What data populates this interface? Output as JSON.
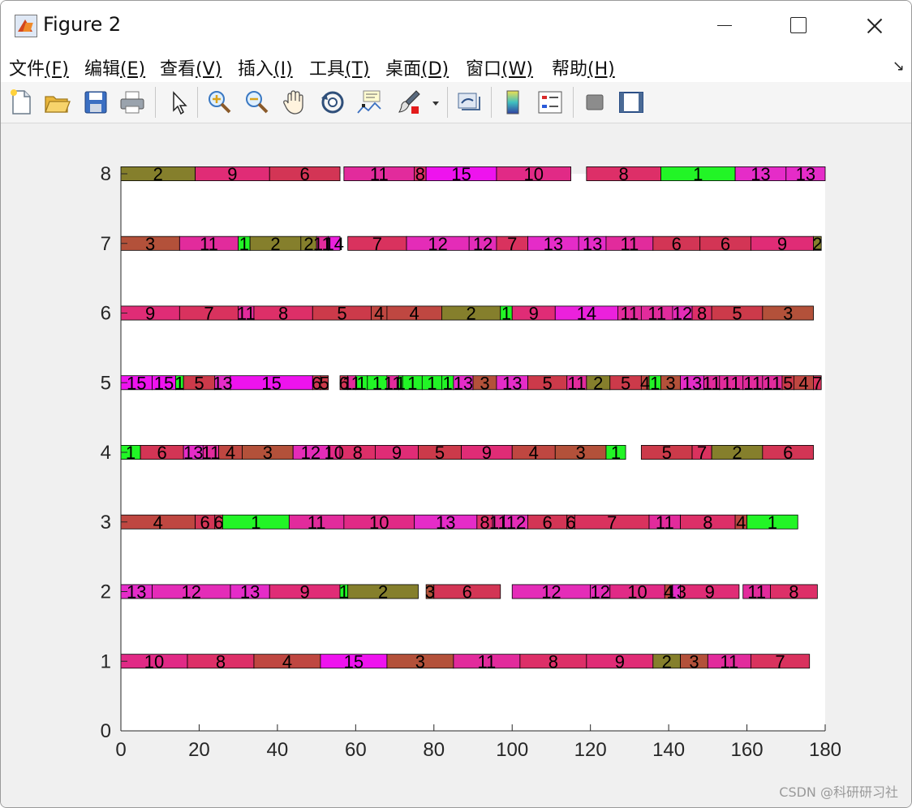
{
  "window": {
    "title": "Figure 2"
  },
  "menu": [
    {
      "label": "文件",
      "accel": "(F)"
    },
    {
      "label": "编辑",
      "accel": "(E)"
    },
    {
      "label": "查看",
      "accel": "(V)"
    },
    {
      "label": "插入",
      "accel": "(I)"
    },
    {
      "label": "工具",
      "accel": "(T)"
    },
    {
      "label": "桌面",
      "accel": "(D)"
    },
    {
      "label": "窗口",
      "accel": "(W)"
    },
    {
      "label": "帮助",
      "accel": "(H)"
    }
  ],
  "menu_corner_icon": "dock-arrow-icon",
  "toolbar_icons": [
    "new-figure-icon",
    "open-folder-icon",
    "save-icon",
    "print-icon",
    "pointer-icon",
    "zoom-in-icon",
    "zoom-out-icon",
    "pan-hand-icon",
    "rotate-3d-icon",
    "data-cursor-icon",
    "brush-icon",
    "brush-dropdown-icon",
    "link-plot-icon",
    "colorbar-icon",
    "legend-icon",
    "hide-plot-tools-icon",
    "show-plot-tools-icon"
  ],
  "watermark": "CSDN @科研研习社",
  "colors": {
    "plot_bg": "#ffffff",
    "figure_bg": "#f0f0f0",
    "bar_edge": "#000000",
    "job_colors": {
      "1": "#22f526",
      "2": "#857f2c",
      "3": "#b3513a",
      "4": "#bf4741",
      "5": "#cc3a4a",
      "6": "#d33555",
      "7": "#d9325e",
      "8": "#dd2f68",
      "9": "#e02c76",
      "10": "#e12a86",
      "11": "#e22b9c",
      "12": "#e42cb8",
      "13": "#e52cc8",
      "14": "#eb21dc",
      "15": "#ee13ee"
    }
  },
  "chart_data": {
    "type": "gantt",
    "xlim": [
      0,
      180
    ],
    "ylim": [
      0,
      8
    ],
    "xticks": [
      0,
      20,
      40,
      60,
      80,
      100,
      120,
      140,
      160,
      180
    ],
    "yticks": [
      0,
      1,
      2,
      3,
      4,
      5,
      6,
      7,
      8
    ],
    "bar_height": 0.2,
    "grid": false,
    "rows": [
      {
        "machine": 1,
        "tasks": [
          [
            0,
            17,
            "10"
          ],
          [
            17,
            34,
            "8"
          ],
          [
            34,
            51,
            "4"
          ],
          [
            51,
            68,
            "15"
          ],
          [
            68,
            85,
            "3"
          ],
          [
            85,
            102,
            "11"
          ],
          [
            102,
            119,
            "8"
          ],
          [
            119,
            136,
            "9"
          ],
          [
            136,
            143,
            "2"
          ],
          [
            143,
            150,
            "3"
          ],
          [
            150,
            161,
            "11"
          ],
          [
            161,
            176,
            "7"
          ]
        ]
      },
      {
        "machine": 2,
        "tasks": [
          [
            0,
            8,
            "13"
          ],
          [
            8,
            28,
            "12"
          ],
          [
            28,
            38,
            "13"
          ],
          [
            38,
            56,
            "9"
          ],
          [
            56,
            58,
            "1"
          ],
          [
            58,
            76,
            "2"
          ],
          [
            78,
            80,
            "3"
          ],
          [
            80,
            97,
            "6"
          ],
          [
            100,
            120,
            "12"
          ],
          [
            120,
            125,
            "12"
          ],
          [
            125,
            139,
            "10"
          ],
          [
            139,
            141,
            "4"
          ],
          [
            141,
            143,
            "13"
          ],
          [
            143,
            158,
            "9"
          ],
          [
            159,
            166,
            "11"
          ],
          [
            166,
            178,
            "8"
          ]
        ]
      },
      {
        "machine": 3,
        "tasks": [
          [
            0,
            19,
            "4"
          ],
          [
            19,
            24,
            "6"
          ],
          [
            24,
            26,
            "6"
          ],
          [
            26,
            43,
            "1"
          ],
          [
            43,
            57,
            "11"
          ],
          [
            57,
            75,
            "10"
          ],
          [
            75,
            91,
            "13"
          ],
          [
            91,
            95,
            "8"
          ],
          [
            95,
            98,
            "11"
          ],
          [
            98,
            104,
            "12"
          ],
          [
            104,
            114,
            "6"
          ],
          [
            114,
            116,
            "6"
          ],
          [
            116,
            135,
            "7"
          ],
          [
            135,
            143,
            "11"
          ],
          [
            143,
            157,
            "8"
          ],
          [
            157,
            160,
            "4"
          ],
          [
            160,
            173,
            "1"
          ]
        ]
      },
      {
        "machine": 4,
        "tasks": [
          [
            0,
            5,
            "1"
          ],
          [
            5,
            16,
            "6"
          ],
          [
            16,
            21,
            "13"
          ],
          [
            21,
            25,
            "11"
          ],
          [
            25,
            31,
            "4"
          ],
          [
            31,
            44,
            "3"
          ],
          [
            44,
            53,
            "12"
          ],
          [
            53,
            56,
            "10"
          ],
          [
            56,
            65,
            "8"
          ],
          [
            65,
            76,
            "9"
          ],
          [
            76,
            87,
            "5"
          ],
          [
            87,
            100,
            "9"
          ],
          [
            100,
            111,
            "4"
          ],
          [
            111,
            124,
            "3"
          ],
          [
            124,
            129,
            "1"
          ],
          [
            133,
            146,
            "5"
          ],
          [
            146,
            151,
            "7"
          ],
          [
            151,
            164,
            "2"
          ],
          [
            164,
            177,
            "6"
          ]
        ]
      },
      {
        "machine": 5,
        "tasks": [
          [
            0,
            8,
            "15"
          ],
          [
            8,
            14,
            "15"
          ],
          [
            14,
            16,
            "1"
          ],
          [
            16,
            24,
            "5"
          ],
          [
            24,
            28,
            "13"
          ],
          [
            28,
            49,
            "15"
          ],
          [
            49,
            51,
            "6"
          ],
          [
            51,
            53,
            "5"
          ],
          [
            56,
            58,
            "6"
          ],
          [
            58,
            60,
            "11"
          ],
          [
            60,
            63,
            "1"
          ],
          [
            63,
            68,
            "1"
          ],
          [
            68,
            71,
            "11"
          ],
          [
            71,
            72,
            "1"
          ],
          [
            72,
            77,
            "1"
          ],
          [
            77,
            82,
            "1"
          ],
          [
            82,
            85,
            "1"
          ],
          [
            85,
            90,
            "13"
          ],
          [
            90,
            96,
            "3"
          ],
          [
            96,
            104,
            "13"
          ],
          [
            104,
            114,
            "5"
          ],
          [
            114,
            119,
            "11"
          ],
          [
            119,
            125,
            "2"
          ],
          [
            125,
            133,
            "5"
          ],
          [
            133,
            135,
            "4"
          ],
          [
            135,
            138,
            "1"
          ],
          [
            138,
            143,
            "3"
          ],
          [
            143,
            149,
            "13"
          ],
          [
            149,
            153,
            "11"
          ],
          [
            153,
            159,
            "11"
          ],
          [
            159,
            164,
            "11"
          ],
          [
            164,
            169,
            "11"
          ],
          [
            169,
            172,
            "5"
          ],
          [
            172,
            177,
            "4"
          ],
          [
            177,
            179,
            "7"
          ]
        ]
      },
      {
        "machine": 6,
        "tasks": [
          [
            0,
            15,
            "9"
          ],
          [
            15,
            30,
            "7"
          ],
          [
            30,
            34,
            "11"
          ],
          [
            34,
            49,
            "8"
          ],
          [
            49,
            64,
            "5"
          ],
          [
            64,
            68,
            "4"
          ],
          [
            68,
            82,
            "4"
          ],
          [
            82,
            97,
            "2"
          ],
          [
            97,
            100,
            "1"
          ],
          [
            100,
            111,
            "9"
          ],
          [
            111,
            127,
            "14"
          ],
          [
            127,
            133,
            "11"
          ],
          [
            133,
            141,
            "11"
          ],
          [
            141,
            146,
            "12"
          ],
          [
            146,
            151,
            "8"
          ],
          [
            151,
            164,
            "5"
          ],
          [
            164,
            177,
            "3"
          ]
        ]
      },
      {
        "machine": 7,
        "tasks": [
          [
            0,
            15,
            "3"
          ],
          [
            15,
            30,
            "11"
          ],
          [
            30,
            33,
            "1"
          ],
          [
            33,
            46,
            "2"
          ],
          [
            46,
            50,
            "2"
          ],
          [
            50,
            53,
            "11"
          ],
          [
            53,
            56,
            "14"
          ],
          [
            58,
            73,
            "7"
          ],
          [
            73,
            89,
            "12"
          ],
          [
            89,
            96,
            "12"
          ],
          [
            96,
            104,
            "7"
          ],
          [
            104,
            117,
            "13"
          ],
          [
            117,
            124,
            "13"
          ],
          [
            124,
            136,
            "11"
          ],
          [
            136,
            148,
            "6"
          ],
          [
            148,
            161,
            "6"
          ],
          [
            161,
            177,
            "9"
          ],
          [
            177,
            179,
            "2"
          ]
        ]
      },
      {
        "machine": 8,
        "tasks": [
          [
            0,
            19,
            "2"
          ],
          [
            19,
            38,
            "9"
          ],
          [
            38,
            56,
            "6"
          ],
          [
            57,
            75,
            "11"
          ],
          [
            75,
            78,
            "8"
          ],
          [
            78,
            96,
            "15"
          ],
          [
            96,
            115,
            "10"
          ],
          [
            119,
            138,
            "8"
          ],
          [
            138,
            157,
            "1"
          ],
          [
            157,
            170,
            "13"
          ],
          [
            170,
            180,
            "13"
          ]
        ]
      }
    ]
  }
}
